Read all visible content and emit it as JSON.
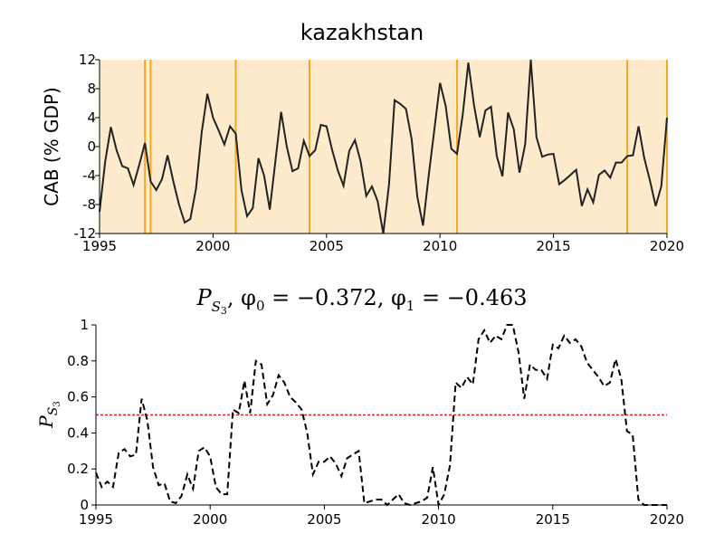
{
  "chart_data": [
    {
      "type": "line",
      "title": "kazakhstan",
      "ylabel": "CAB (% GDP)",
      "xlim": [
        1995,
        2020
      ],
      "ylim": [
        -12,
        12
      ],
      "x_ticks": [
        "1995",
        "2000",
        "2005",
        "2010",
        "2015",
        "2020"
      ],
      "y_ticks": [
        "-12",
        "-8",
        "-4",
        "0",
        "4",
        "8",
        "12"
      ],
      "background_color": "#fdebcc",
      "line_color": "#222222",
      "vline_color": "#f7a823",
      "break_dates": [
        1997.0,
        1997.25,
        2001.0,
        2004.25,
        2010.75,
        2018.25,
        2020.0
      ],
      "series": [
        {
          "x": [
            1995.0,
            1995.25,
            1995.5,
            1995.75,
            1996.0,
            1996.25,
            1996.5,
            1996.75,
            1997.0,
            1997.25,
            1997.5,
            1997.75,
            1998.0,
            1998.25,
            1998.5,
            1998.75,
            1999.0,
            1999.25,
            1999.5,
            1999.75,
            2000.0,
            2000.25,
            2000.5,
            2000.75,
            2001.0,
            2001.25,
            2001.5,
            2001.75,
            2002.0,
            2002.25,
            2002.5,
            2002.75,
            2003.0,
            2003.25,
            2003.5,
            2003.75,
            2004.0,
            2004.25,
            2004.5,
            2004.75,
            2005.0,
            2005.25,
            2005.5,
            2005.75,
            2006.0,
            2006.25,
            2006.5,
            2006.75,
            2007.0,
            2007.25,
            2007.5,
            2007.75,
            2008.0,
            2008.25,
            2008.5,
            2008.75,
            2009.0,
            2009.25,
            2009.5,
            2009.75,
            2010.0,
            2010.25,
            2010.5,
            2010.75,
            2011.0,
            2011.25,
            2011.5,
            2011.75,
            2012.0,
            2012.25,
            2012.5,
            2012.75,
            2013.0,
            2013.25,
            2013.5,
            2013.75,
            2014.0,
            2014.25,
            2014.5,
            2014.75,
            2015.0,
            2015.25,
            2015.5,
            2015.75,
            2016.0,
            2016.25,
            2016.5,
            2016.75,
            2017.0,
            2017.25,
            2017.5,
            2017.75,
            2018.0,
            2018.25,
            2018.5,
            2018.75,
            2019.0,
            2019.25,
            2019.5,
            2019.75,
            2020.0
          ],
          "values": [
            -9.0,
            -2.0,
            2.7,
            -0.5,
            -2.7,
            -3.0,
            -5.3,
            -2.5,
            0.5,
            -4.8,
            -6.0,
            -4.5,
            -1.2,
            -4.8,
            -8.0,
            -10.5,
            -10.0,
            -5.8,
            2.0,
            7.3,
            4.0,
            2.2,
            0.3,
            2.8,
            1.8,
            -6.0,
            -9.6,
            -8.5,
            -1.6,
            -4.0,
            -8.7,
            -1.9,
            4.8,
            0.0,
            -3.4,
            -3.0,
            0.8,
            -1.3,
            -0.5,
            3.0,
            2.8,
            -0.5,
            -3.3,
            -5.4,
            -0.6,
            0.9,
            -2.0,
            -6.8,
            -5.5,
            -7.5,
            -12.0,
            -5.3,
            6.4,
            5.9,
            5.2,
            1.0,
            -6.9,
            -10.9,
            -4.0,
            2.3,
            8.8,
            5.6,
            -0.3,
            -1.0,
            4.4,
            11.6,
            5.7,
            1.3,
            5.0,
            5.5,
            -1.3,
            -4.1,
            4.7,
            2.4,
            -3.6,
            0.3,
            12.0,
            1.3,
            -1.4,
            -1.1,
            -1.0,
            -5.2,
            -4.6,
            -3.9,
            -3.2,
            -8.2,
            -5.9,
            -7.7,
            -3.9,
            -3.3,
            -4.3,
            -2.2,
            -2.2,
            -1.3,
            -1.2,
            2.8,
            -1.6,
            -4.7,
            -8.2,
            -5.5,
            4.0
          ]
        }
      ]
    },
    {
      "type": "line",
      "title_parts": {
        "p": "P",
        "s": "S",
        "n": "3",
        "phi0_label": ", φ",
        "phi0_sub": "0",
        "phi0_val": " = −0.372, φ",
        "phi1_sub": "1",
        "phi1_val": " = −0.463"
      },
      "ylabel_parts": {
        "p": "P",
        "s": "S",
        "n": "3"
      },
      "xlim": [
        1995,
        2020
      ],
      "ylim": [
        0,
        1
      ],
      "x_ticks": [
        "1995",
        "2000",
        "2005",
        "2010",
        "2015",
        "2020"
      ],
      "y_ticks": [
        "0",
        "0.2",
        "0.4",
        "0.6",
        "0.8",
        "1"
      ],
      "threshold": 0.5,
      "threshold_color": "#e02020",
      "line_color": "#000000",
      "series": [
        {
          "x": [
            1995.0,
            1995.25,
            1995.5,
            1995.75,
            1996.0,
            1996.25,
            1996.5,
            1996.75,
            1997.0,
            1997.25,
            1997.5,
            1997.75,
            1998.0,
            1998.25,
            1998.5,
            1998.75,
            1999.0,
            1999.25,
            1999.5,
            1999.75,
            2000.0,
            2000.25,
            2000.5,
            2000.75,
            2001.0,
            2001.25,
            2001.5,
            2001.75,
            2002.0,
            2002.25,
            2002.5,
            2002.75,
            2003.0,
            2003.25,
            2003.5,
            2003.75,
            2004.0,
            2004.25,
            2004.5,
            2004.75,
            2005.0,
            2005.25,
            2005.5,
            2005.75,
            2006.0,
            2006.25,
            2006.5,
            2006.75,
            2007.0,
            2007.25,
            2007.5,
            2007.75,
            2008.0,
            2008.25,
            2008.5,
            2008.75,
            2009.0,
            2009.25,
            2009.5,
            2009.75,
            2010.0,
            2010.25,
            2010.5,
            2010.75,
            2011.0,
            2011.25,
            2011.5,
            2011.75,
            2012.0,
            2012.25,
            2012.5,
            2012.75,
            2013.0,
            2013.25,
            2013.5,
            2013.75,
            2014.0,
            2014.25,
            2014.5,
            2014.75,
            2015.0,
            2015.25,
            2015.5,
            2015.75,
            2016.0,
            2016.25,
            2016.5,
            2016.75,
            2017.0,
            2017.25,
            2017.5,
            2017.75,
            2018.0,
            2018.25,
            2018.5,
            2018.75,
            2019.0,
            2019.25,
            2019.5,
            2019.75,
            2020.0
          ],
          "values": [
            0.18,
            0.1,
            0.13,
            0.1,
            0.29,
            0.31,
            0.27,
            0.28,
            0.59,
            0.47,
            0.21,
            0.11,
            0.12,
            0.02,
            0.01,
            0.05,
            0.17,
            0.09,
            0.3,
            0.32,
            0.27,
            0.1,
            0.06,
            0.06,
            0.53,
            0.51,
            0.69,
            0.51,
            0.8,
            0.78,
            0.56,
            0.61,
            0.72,
            0.68,
            0.6,
            0.57,
            0.53,
            0.4,
            0.17,
            0.24,
            0.24,
            0.27,
            0.23,
            0.16,
            0.26,
            0.28,
            0.3,
            0.01,
            0.02,
            0.03,
            0.03,
            0.0,
            0.03,
            0.06,
            0.01,
            0.0,
            0.01,
            0.02,
            0.04,
            0.21,
            0.0,
            0.06,
            0.22,
            0.68,
            0.65,
            0.71,
            0.67,
            0.92,
            0.97,
            0.9,
            0.94,
            0.92,
            1.0,
            1.0,
            0.85,
            0.59,
            0.78,
            0.75,
            0.75,
            0.7,
            0.89,
            0.87,
            0.94,
            0.9,
            0.92,
            0.88,
            0.79,
            0.75,
            0.71,
            0.66,
            0.68,
            0.81,
            0.7,
            0.41,
            0.39,
            0.03,
            0.0,
            0.0,
            0.0,
            0.0,
            0.0
          ]
        }
      ]
    }
  ]
}
